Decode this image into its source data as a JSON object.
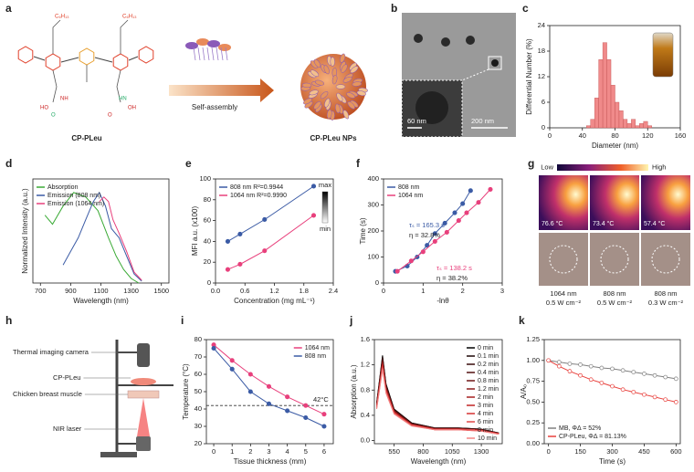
{
  "panel_labels": [
    "a",
    "b",
    "c",
    "d",
    "e",
    "f",
    "g",
    "h",
    "i",
    "j",
    "k"
  ],
  "scheme": {
    "polymer": "CP-PLeu",
    "step": "Self-assembly",
    "product": "CP-PLeu NPs",
    "side_chain": "C₆H₁₃",
    "groups": [
      "HO",
      "O",
      "NH",
      "O",
      "HN",
      "OH"
    ]
  },
  "tem": {
    "inset_scale": "60 nm",
    "scale": "200 nm"
  },
  "thermal": {
    "scale_low": "Low",
    "scale_high": "High",
    "temperatures": [
      "76.6 °C",
      "73.4 °C",
      "57.4 °C"
    ],
    "conditions": [
      [
        "1064 nm",
        "0.5 W cm⁻²"
      ],
      [
        "808 nm",
        "0.5 W cm⁻²"
      ],
      [
        "808 nm",
        "0.3 W cm⁻²"
      ]
    ]
  },
  "setup": {
    "labels": [
      "Thermal imaging camera",
      "CP-PLeu",
      "Chicken breast muscle",
      "NIR laser"
    ]
  },
  "chart_data": [
    {
      "type": "histogram",
      "xlabel": "Diameter (nm)",
      "ylabel": "Differential Number (%)",
      "color": "#f08a8a",
      "bins": [
        45,
        50,
        55,
        60,
        65,
        70,
        75,
        80,
        85,
        90,
        95,
        100,
        105,
        110,
        115,
        120,
        125
      ],
      "values": [
        0.5,
        2,
        7,
        16,
        20,
        16,
        10,
        6,
        4,
        2,
        1,
        2,
        0.5,
        1,
        1.5,
        0.5
      ],
      "xlim": [
        0,
        160
      ],
      "xticks": [
        0,
        40,
        80,
        120,
        160
      ],
      "ylim": [
        0,
        24
      ],
      "yticks": [
        0,
        6,
        12,
        18,
        24
      ]
    },
    {
      "type": "line",
      "xlabel": "Wavelength (nm)",
      "ylabel": "Normalized Intensity (a.u.)",
      "legend": "upper left",
      "xlim": [
        650,
        1550
      ],
      "xticks": [
        700,
        900,
        1100,
        1300,
        1500
      ],
      "ylim": [
        0,
        1.15
      ],
      "yticks": [],
      "series": [
        {
          "name": "Absorption",
          "color": "#3aaa35",
          "x": [
            730,
            780,
            850,
            920,
            1000,
            1080,
            1150,
            1200,
            1250,
            1300,
            1350
          ],
          "values": [
            0.75,
            0.65,
            0.85,
            1.0,
            0.95,
            0.8,
            0.5,
            0.3,
            0.15,
            0.05,
            0.0
          ]
        },
        {
          "name": "Emission (808 nm)",
          "color": "#3b5ba5",
          "x": [
            850,
            900,
            950,
            1000,
            1050,
            1090,
            1130,
            1170,
            1220,
            1270,
            1320,
            1370
          ],
          "values": [
            0.2,
            0.35,
            0.5,
            0.7,
            0.9,
            1.0,
            0.85,
            0.6,
            0.5,
            0.3,
            0.1,
            0.02
          ]
        },
        {
          "name": "Emission (1064 nm)",
          "color": "#e8407c",
          "x": [
            1090,
            1120,
            1150,
            1180,
            1220,
            1270,
            1320,
            1370
          ],
          "values": [
            0.9,
            0.95,
            0.9,
            0.7,
            0.55,
            0.35,
            0.12,
            0.03
          ]
        }
      ]
    },
    {
      "type": "line",
      "markers": "filled",
      "xlabel": "Concentration (mg mL⁻¹)",
      "ylabel": "MFI a.u. (x100)",
      "legend": "upper left",
      "xlim": [
        0,
        2.4
      ],
      "xticks": [
        {
          "value": 0,
          "label": "0.0"
        },
        0.6,
        1.2,
        1.8,
        2.4
      ],
      "ylim": [
        0,
        100
      ],
      "yticks": [
        0,
        20,
        40,
        60,
        80,
        100
      ],
      "colorbar_labels": [
        "max",
        "min"
      ],
      "series": [
        {
          "name": "808 nm R²=0.9944",
          "color": "#3b5ba5",
          "x": [
            0.25,
            0.5,
            1,
            2
          ],
          "values": [
            40,
            47,
            61,
            93
          ]
        },
        {
          "name": "1064 nm R²=0.9990",
          "color": "#e8407c",
          "x": [
            0.25,
            0.5,
            1,
            2
          ],
          "values": [
            13,
            18,
            31,
            65
          ]
        }
      ]
    },
    {
      "type": "line",
      "markers": "filled",
      "xlabel": "-lnθ",
      "ylabel": "Time (s)",
      "legend": "upper left",
      "xlim": [
        0,
        3
      ],
      "xticks": [
        0,
        1,
        2,
        3
      ],
      "ylim": [
        0,
        400
      ],
      "yticks": [
        0,
        100,
        200,
        300,
        400
      ],
      "annotations": [
        "τₛ = 165.3 s",
        "η = 32.8%",
        "τₛ = 138.2 s",
        "η = 38.2%"
      ],
      "series": [
        {
          "name": "808 nm",
          "color": "#3b5ba5",
          "x": [
            0.3,
            0.6,
            0.85,
            1.1,
            1.3,
            1.55,
            1.8,
            2.0,
            2.2
          ],
          "values": [
            45,
            65,
            100,
            145,
            190,
            230,
            270,
            305,
            355
          ]
        },
        {
          "name": "1064 nm",
          "color": "#e8407c",
          "x": [
            0.35,
            0.7,
            1.0,
            1.3,
            1.6,
            1.9,
            2.1,
            2.4,
            2.7
          ],
          "values": [
            45,
            85,
            120,
            160,
            195,
            240,
            270,
            310,
            360
          ]
        }
      ]
    },
    {
      "type": "line",
      "markers": "filled",
      "xlabel": "Tissue thickness (mm)",
      "ylabel": "Temperature (°C)",
      "legend": "upper right",
      "xlim": [
        -0.4,
        6.5
      ],
      "xticks": [
        0,
        1,
        2,
        3,
        4,
        5,
        6
      ],
      "ylim": [
        20,
        80
      ],
      "yticks": [
        20,
        30,
        40,
        50,
        60,
        70,
        80
      ],
      "reference_line": {
        "value": 42,
        "label": "42°C"
      },
      "series": [
        {
          "name": "1064 nm",
          "color": "#e8407c",
          "x": [
            0,
            1,
            2,
            3,
            4,
            5,
            6
          ],
          "values": [
            77,
            68,
            60,
            53,
            47,
            42,
            37
          ]
        },
        {
          "name": "808 nm",
          "color": "#3b5ba5",
          "x": [
            0,
            1,
            2,
            3,
            4,
            5,
            6
          ],
          "values": [
            75,
            63,
            50,
            43,
            39,
            35,
            30
          ]
        }
      ]
    },
    {
      "type": "line",
      "xlabel": "Wavelength (nm)",
      "ylabel": "Absorption (a.u.)",
      "legend": "upper right",
      "xlim": [
        380,
        1480
      ],
      "xticks": [
        550,
        800,
        1050,
        1300
      ],
      "ylim": [
        -0.05,
        1.6
      ],
      "yticks": [
        {
          "value": 0,
          "label": "0.0"
        },
        0.4,
        0.8,
        1.2,
        1.6
      ],
      "series": [
        {
          "name": "0 min",
          "color": "#000000",
          "x": [
            400,
            430,
            450,
            480,
            550,
            700,
            900,
            1100,
            1300,
            1450
          ],
          "values": [
            0.6,
            1.05,
            1.35,
            0.9,
            0.5,
            0.28,
            0.2,
            0.2,
            0.18,
            0.12
          ]
        },
        {
          "name": "0.1 min",
          "color": "#1c0606",
          "x": [
            400,
            430,
            450,
            480,
            550,
            700,
            900,
            1100,
            1300,
            1450
          ],
          "values": [
            0.59,
            1.03,
            1.33,
            0.89,
            0.49,
            0.28,
            0.2,
            0.2,
            0.18,
            0.12
          ]
        },
        {
          "name": "0.2 min",
          "color": "#380b0b",
          "x": [
            400,
            430,
            450,
            480,
            550,
            700,
            900,
            1100,
            1300,
            1450
          ],
          "values": [
            0.58,
            1.02,
            1.31,
            0.87,
            0.49,
            0.27,
            0.19,
            0.19,
            0.17,
            0.12
          ]
        },
        {
          "name": "0.4 min",
          "color": "#531010",
          "x": [
            400,
            430,
            450,
            480,
            550,
            700,
            900,
            1100,
            1300,
            1450
          ],
          "values": [
            0.57,
            1.0,
            1.29,
            0.86,
            0.48,
            0.27,
            0.19,
            0.19,
            0.17,
            0.11
          ]
        },
        {
          "name": "0.8 min",
          "color": "#6e1515",
          "x": [
            400,
            430,
            450,
            480,
            550,
            700,
            900,
            1100,
            1300,
            1450
          ],
          "values": [
            0.56,
            0.99,
            1.27,
            0.85,
            0.47,
            0.26,
            0.19,
            0.19,
            0.17,
            0.11
          ]
        },
        {
          "name": "1.2 min",
          "color": "#8a1a1a",
          "x": [
            400,
            430,
            450,
            480,
            550,
            700,
            900,
            1100,
            1300,
            1450
          ],
          "values": [
            0.56,
            0.97,
            1.25,
            0.83,
            0.46,
            0.26,
            0.19,
            0.19,
            0.17,
            0.11
          ]
        },
        {
          "name": "2 min",
          "color": "#a51f1f",
          "x": [
            400,
            430,
            450,
            480,
            550,
            700,
            900,
            1100,
            1300,
            1450
          ],
          "values": [
            0.55,
            0.96,
            1.23,
            0.82,
            0.46,
            0.25,
            0.18,
            0.18,
            0.16,
            0.11
          ]
        },
        {
          "name": "3 min",
          "color": "#c02424",
          "x": [
            400,
            430,
            450,
            480,
            550,
            700,
            900,
            1100,
            1300,
            1450
          ],
          "values": [
            0.54,
            0.94,
            1.21,
            0.81,
            0.45,
            0.25,
            0.18,
            0.18,
            0.16,
            0.11
          ]
        },
        {
          "name": "4 min",
          "color": "#d63030",
          "x": [
            400,
            430,
            450,
            480,
            550,
            700,
            900,
            1100,
            1300,
            1450
          ],
          "values": [
            0.53,
            0.92,
            1.19,
            0.79,
            0.44,
            0.25,
            0.18,
            0.18,
            0.16,
            0.11
          ]
        },
        {
          "name": "6 min",
          "color": "#e04848",
          "x": [
            400,
            430,
            450,
            480,
            550,
            700,
            900,
            1100,
            1300,
            1450
          ],
          "values": [
            0.52,
            0.91,
            1.17,
            0.78,
            0.43,
            0.24,
            0.17,
            0.17,
            0.16,
            0.1
          ]
        },
        {
          "name": "8 min",
          "color": "#ea6464",
          "x": [
            400,
            430,
            450,
            480,
            550,
            700,
            900,
            1100,
            1300,
            1450
          ],
          "values": [
            0.51,
            0.89,
            1.15,
            0.77,
            0.43,
            0.24,
            0.17,
            0.17,
            0.15,
            0.1
          ]
        },
        {
          "name": "10 min",
          "color": "#f28484",
          "x": [
            400,
            430,
            450,
            480,
            550,
            700,
            900,
            1100,
            1300,
            1450
          ],
          "values": [
            0.5,
            0.88,
            1.13,
            0.75,
            0.42,
            0.23,
            0.17,
            0.17,
            0.15,
            0.1
          ]
        }
      ]
    },
    {
      "type": "line",
      "markers": "open",
      "xlabel": "Time (s)",
      "ylabel": "A/A₀",
      "legend": "lower left",
      "xlim": [
        -20,
        620
      ],
      "xticks": [
        0,
        150,
        300,
        450,
        600
      ],
      "ylim": [
        0,
        1.25
      ],
      "yticks": [
        {
          "value": 0,
          "label": "0.00"
        },
        0.25,
        {
          "value": 0.5,
          "label": "0.50"
        },
        0.75,
        {
          "value": 1,
          "label": "1.00"
        },
        1.25
      ],
      "series": [
        {
          "name": "MB, ΦΔ = 52%",
          "color": "#808080",
          "x": [
            0,
            50,
            100,
            150,
            200,
            250,
            300,
            350,
            400,
            450,
            500,
            550,
            600
          ],
          "values": [
            1.0,
            0.98,
            0.96,
            0.95,
            0.93,
            0.91,
            0.9,
            0.88,
            0.86,
            0.84,
            0.82,
            0.8,
            0.78
          ]
        },
        {
          "name": "CP-PLeu, ΦΔ = 81.13%",
          "color": "#e8403c",
          "x": [
            0,
            50,
            100,
            150,
            200,
            250,
            300,
            350,
            400,
            450,
            500,
            550,
            600
          ],
          "values": [
            1.0,
            0.93,
            0.87,
            0.82,
            0.77,
            0.73,
            0.69,
            0.65,
            0.62,
            0.59,
            0.56,
            0.53,
            0.5
          ]
        }
      ]
    }
  ]
}
